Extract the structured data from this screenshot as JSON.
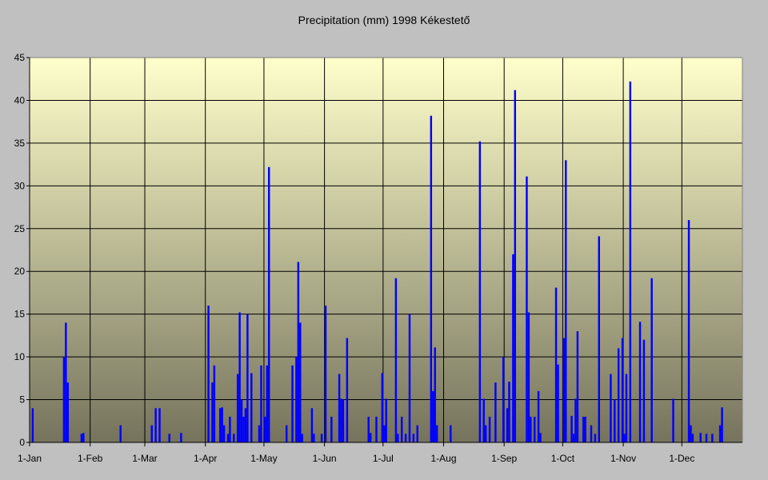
{
  "chart_data": {
    "type": "bar",
    "title": "Precipitation (mm) 1998 Kékestető",
    "xlabel": "",
    "ylabel": "",
    "x_unit": "day of year 1998",
    "xlim": [
      1,
      365
    ],
    "ylim": [
      0,
      45
    ],
    "y_ticks": [
      0,
      5,
      10,
      15,
      20,
      25,
      30,
      35,
      40,
      45
    ],
    "x_ticks": [
      {
        "day": 1,
        "label": "1-Jan"
      },
      {
        "day": 32,
        "label": "1-Feb"
      },
      {
        "day": 60,
        "label": "1-Mar"
      },
      {
        "day": 91,
        "label": "1-Apr"
      },
      {
        "day": 121,
        "label": "1-May"
      },
      {
        "day": 152,
        "label": "1-Jun"
      },
      {
        "day": 182,
        "label": "1-Jul"
      },
      {
        "day": 213,
        "label": "1-Aug"
      },
      {
        "day": 244,
        "label": "1-Sep"
      },
      {
        "day": 274,
        "label": "1-Oct"
      },
      {
        "day": 305,
        "label": "1-Nov"
      },
      {
        "day": 335,
        "label": "1-Dec"
      }
    ],
    "grid": true,
    "legend": "none",
    "colors": {
      "bar": "#0000ff",
      "background": "#c0c0c0",
      "plot_top": "#ffffcc",
      "plot_bottom": "#75735c"
    },
    "points": [
      [
        2,
        4
      ],
      [
        18,
        10
      ],
      [
        19,
        14
      ],
      [
        20,
        7
      ],
      [
        27,
        1
      ],
      [
        28,
        1.1
      ],
      [
        47,
        2
      ],
      [
        63,
        2
      ],
      [
        65,
        4
      ],
      [
        67,
        4
      ],
      [
        72,
        1
      ],
      [
        78,
        1.1
      ],
      [
        92,
        16
      ],
      [
        94,
        7
      ],
      [
        95,
        9
      ],
      [
        98,
        4
      ],
      [
        99,
        4.1
      ],
      [
        100,
        2
      ],
      [
        102,
        1
      ],
      [
        103,
        3
      ],
      [
        105,
        1
      ],
      [
        107,
        8
      ],
      [
        108,
        15.2
      ],
      [
        109,
        5
      ],
      [
        110,
        3
      ],
      [
        111,
        4
      ],
      [
        112,
        15
      ],
      [
        114,
        8.1
      ],
      [
        118,
        2
      ],
      [
        119,
        9
      ],
      [
        121,
        3
      ],
      [
        122,
        9
      ],
      [
        123,
        32.2
      ],
      [
        132,
        2
      ],
      [
        135,
        9
      ],
      [
        137,
        10
      ],
      [
        138,
        21.1
      ],
      [
        139,
        14
      ],
      [
        140,
        1
      ],
      [
        145,
        4
      ],
      [
        146,
        1
      ],
      [
        150,
        1
      ],
      [
        152,
        16
      ],
      [
        155,
        3
      ],
      [
        159,
        8
      ],
      [
        160,
        5.1
      ],
      [
        161,
        5
      ],
      [
        163,
        12.2
      ],
      [
        174,
        3
      ],
      [
        175,
        1.1
      ],
      [
        178,
        3
      ],
      [
        181,
        8.1
      ],
      [
        182,
        2
      ],
      [
        183,
        5.1
      ],
      [
        188,
        19.2
      ],
      [
        189,
        1
      ],
      [
        191,
        3
      ],
      [
        193,
        1
      ],
      [
        195,
        15
      ],
      [
        197,
        1
      ],
      [
        199,
        2
      ],
      [
        206,
        38.2
      ],
      [
        207,
        6
      ],
      [
        208,
        11.1
      ],
      [
        209,
        2
      ],
      [
        216,
        2
      ],
      [
        231,
        35.2
      ],
      [
        233,
        5.1
      ],
      [
        234,
        2
      ],
      [
        236,
        3
      ],
      [
        239,
        7
      ],
      [
        243,
        10
      ],
      [
        245,
        4
      ],
      [
        246,
        7.1
      ],
      [
        248,
        22
      ],
      [
        249,
        41.2
      ],
      [
        255,
        31.1
      ],
      [
        256,
        15.2
      ],
      [
        257,
        3
      ],
      [
        259,
        3
      ],
      [
        261,
        6
      ],
      [
        262,
        1.1
      ],
      [
        270,
        18.1
      ],
      [
        271,
        9.1
      ],
      [
        274,
        12.2
      ],
      [
        275,
        33
      ],
      [
        278,
        3.1
      ],
      [
        279,
        1
      ],
      [
        280,
        5.1
      ],
      [
        281,
        13
      ],
      [
        284,
        3
      ],
      [
        285,
        3
      ],
      [
        288,
        2
      ],
      [
        290,
        1
      ],
      [
        292,
        24.1
      ],
      [
        298,
        8
      ],
      [
        300,
        5
      ],
      [
        302,
        11
      ],
      [
        304,
        12.2
      ],
      [
        305,
        1
      ],
      [
        306,
        8
      ],
      [
        308,
        42.2
      ],
      [
        313,
        14.1
      ],
      [
        315,
        12
      ],
      [
        319,
        19.2
      ],
      [
        330,
        5.1
      ],
      [
        338,
        26
      ],
      [
        339,
        2
      ],
      [
        340,
        1
      ],
      [
        344,
        1.1
      ],
      [
        347,
        1
      ],
      [
        350,
        1
      ],
      [
        354,
        2
      ],
      [
        355,
        4.1
      ]
    ]
  }
}
